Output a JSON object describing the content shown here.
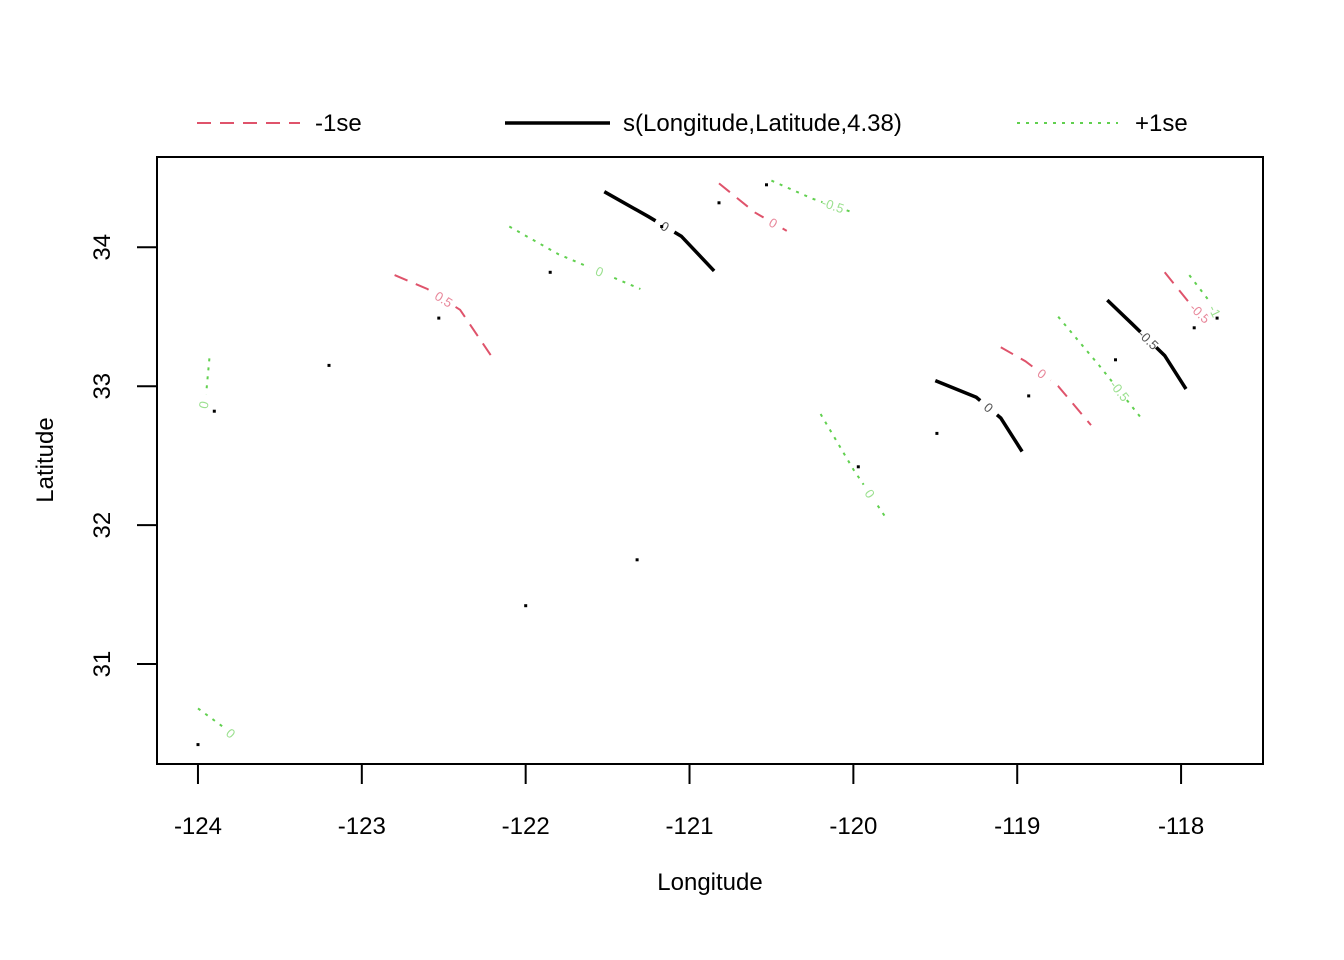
{
  "chart_data": {
    "type": "contour",
    "xlabel": "Longitude",
    "ylabel": "Latitude",
    "xlim": [
      -124.25,
      -117.5
    ],
    "ylim": [
      30.28,
      34.65
    ],
    "x_ticks": [
      -124,
      -123,
      -122,
      -121,
      -120,
      -119,
      -118
    ],
    "y_ticks": [
      31,
      32,
      33,
      34
    ],
    "x_tick_labels": [
      "-124",
      "-123",
      "-122",
      "-121",
      "-120",
      "-119",
      "-118"
    ],
    "y_tick_labels": [
      "31",
      "32",
      "33",
      "34"
    ],
    "legend": {
      "placement": "top",
      "entries": [
        {
          "key": "minus",
          "label": "-1se",
          "color": "#DF536B",
          "style": "dashed"
        },
        {
          "key": "fit",
          "label": "s(Longitude,Latitude,4.38)",
          "color": "#000000",
          "style": "solid"
        },
        {
          "key": "plus",
          "label": "+1se",
          "color": "#61D04F",
          "style": "dotted"
        }
      ]
    },
    "series": [
      {
        "key": "fit",
        "contours": [
          {
            "level": "0",
            "points": [
              [
                -121.52,
                34.4
              ],
              [
                -121.25,
                34.22
              ],
              [
                -121.05,
                34.08
              ],
              [
                -120.85,
                33.83
              ]
            ]
          },
          {
            "level": "0",
            "points": [
              [
                -119.5,
                33.04
              ],
              [
                -119.25,
                32.92
              ],
              [
                -119.1,
                32.77
              ],
              [
                -118.97,
                32.53
              ]
            ]
          },
          {
            "level": "-0.5",
            "points": [
              [
                -118.45,
                33.62
              ],
              [
                -118.3,
                33.45
              ],
              [
                -118.1,
                33.22
              ],
              [
                -117.97,
                32.98
              ]
            ]
          }
        ]
      },
      {
        "key": "minus",
        "contours": [
          {
            "level": "0.5",
            "points": [
              [
                -122.8,
                33.8
              ],
              [
                -122.6,
                33.7
              ],
              [
                -122.4,
                33.55
              ],
              [
                -122.2,
                33.2
              ]
            ]
          },
          {
            "level": "0",
            "points": [
              [
                -120.82,
                34.46
              ],
              [
                -120.6,
                34.25
              ],
              [
                -120.38,
                34.1
              ]
            ]
          },
          {
            "level": "0",
            "points": [
              [
                -119.1,
                33.28
              ],
              [
                -118.95,
                33.18
              ],
              [
                -118.75,
                33.0
              ],
              [
                -118.55,
                32.72
              ]
            ]
          },
          {
            "level": "-0.5",
            "points": [
              [
                -118.1,
                33.82
              ],
              [
                -117.95,
                33.6
              ],
              [
                -117.82,
                33.45
              ]
            ]
          }
        ]
      },
      {
        "key": "plus",
        "contours": [
          {
            "level": "0",
            "points": [
              [
                -123.93,
                33.2
              ],
              [
                -123.95,
                32.95
              ],
              [
                -123.98,
                32.78
              ]
            ]
          },
          {
            "level": "0",
            "points": [
              [
                -122.1,
                34.15
              ],
              [
                -121.8,
                33.95
              ],
              [
                -121.3,
                33.7
              ]
            ]
          },
          {
            "level": "-0.5",
            "points": [
              [
                -120.5,
                34.48
              ],
              [
                -120.25,
                34.35
              ],
              [
                -120.0,
                34.25
              ]
            ]
          },
          {
            "level": "0",
            "points": [
              [
                -120.2,
                32.8
              ],
              [
                -120.0,
                32.4
              ],
              [
                -119.8,
                32.05
              ]
            ]
          },
          {
            "level": "-0.5",
            "points": [
              [
                -118.75,
                33.5
              ],
              [
                -118.5,
                33.15
              ],
              [
                -118.25,
                32.78
              ]
            ]
          },
          {
            "level": "-1",
            "points": [
              [
                -117.95,
                33.8
              ],
              [
                -117.82,
                33.6
              ],
              [
                -117.77,
                33.48
              ]
            ]
          },
          {
            "level": "0",
            "points": [
              [
                -124.0,
                30.68
              ],
              [
                -123.85,
                30.55
              ],
              [
                -123.75,
                30.45
              ]
            ]
          }
        ]
      }
    ],
    "points": [
      [
        -123.9,
        32.82
      ],
      [
        -123.2,
        33.15
      ],
      [
        -122.53,
        33.49
      ],
      [
        -121.85,
        33.82
      ],
      [
        -121.17,
        34.15
      ],
      [
        -120.82,
        34.32
      ],
      [
        -120.53,
        34.45
      ],
      [
        -122.0,
        31.42
      ],
      [
        -121.32,
        31.75
      ],
      [
        -119.97,
        32.42
      ],
      [
        -119.49,
        32.66
      ],
      [
        -118.93,
        32.93
      ],
      [
        -118.4,
        33.19
      ],
      [
        -117.92,
        33.42
      ],
      [
        -117.78,
        33.49
      ],
      [
        -124.0,
        30.42
      ]
    ]
  }
}
